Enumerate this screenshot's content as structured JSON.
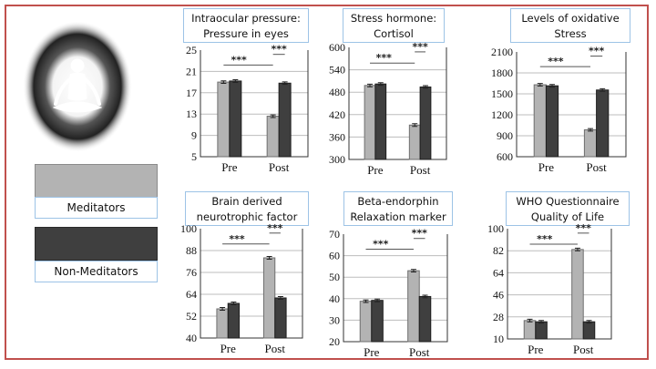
{
  "legend": {
    "meditators": {
      "label": "Meditators",
      "color": "#b3b3b3"
    },
    "non_meditators": {
      "label": "Non-Meditators",
      "color": "#3f3f3f"
    }
  },
  "chart_data": [
    {
      "type": "bar",
      "title_lines": [
        "Intraocular pressure:",
        "Pressure in eyes"
      ],
      "categories": [
        "Pre",
        "Post"
      ],
      "series": [
        {
          "name": "Meditators",
          "values": [
            19,
            12.6
          ]
        },
        {
          "name": "Non-Meditators",
          "values": [
            19.2,
            18.8
          ]
        }
      ],
      "ylim": [
        5,
        25
      ],
      "yticks": [
        "25",
        "21",
        "17",
        "13",
        "9",
        "5"
      ],
      "significance": [
        "***",
        "***"
      ]
    },
    {
      "type": "bar",
      "title_lines": [
        "Stress hormone:",
        "Cortisol"
      ],
      "categories": [
        "Pre",
        "Post"
      ],
      "series": [
        {
          "name": "Meditators",
          "values": [
            498,
            392
          ]
        },
        {
          "name": "Non-Meditators",
          "values": [
            502,
            494
          ]
        }
      ],
      "ylim": [
        300,
        600
      ],
      "yticks": [
        "600",
        "540",
        "480",
        "420",
        "360",
        "300"
      ],
      "significance": [
        "***",
        "***"
      ]
    },
    {
      "type": "bar",
      "title_lines": [
        "Levels of oxidative",
        "Stress"
      ],
      "categories": [
        "Pre",
        "Post"
      ],
      "series": [
        {
          "name": "Meditators",
          "values": [
            1630,
            985
          ]
        },
        {
          "name": "Non-Meditators",
          "values": [
            1615,
            1555
          ]
        }
      ],
      "ylim": [
        600,
        2100
      ],
      "yticks": [
        "2100",
        "1800",
        "1500",
        "1200",
        "900",
        "600"
      ],
      "significance": [
        "***",
        "***"
      ]
    },
    {
      "type": "bar",
      "title_lines": [
        "Brain derived",
        "neurotrophic factor"
      ],
      "categories": [
        "Pre",
        "Post"
      ],
      "series": [
        {
          "name": "Meditators",
          "values": [
            56,
            84
          ]
        },
        {
          "name": "Non-Meditators",
          "values": [
            59,
            62
          ]
        }
      ],
      "ylim": [
        40,
        100
      ],
      "yticks": [
        "100",
        "88",
        "76",
        "64",
        "52",
        "40"
      ],
      "significance": [
        "***",
        "***"
      ]
    },
    {
      "type": "bar",
      "title_lines": [
        "Beta-endorphin",
        "Relaxation marker"
      ],
      "categories": [
        "Pre",
        "Post"
      ],
      "series": [
        {
          "name": "Meditators",
          "values": [
            38.8,
            53
          ]
        },
        {
          "name": "Non-Meditators",
          "values": [
            39.2,
            41
          ]
        }
      ],
      "ylim": [
        20,
        70
      ],
      "yticks": [
        "70",
        "60",
        "50",
        "40",
        "30",
        "20"
      ],
      "significance": [
        "***",
        "***"
      ]
    },
    {
      "type": "bar",
      "title_lines": [
        "WHO Questionnaire",
        "Quality of Life"
      ],
      "categories": [
        "Pre",
        "Post"
      ],
      "series": [
        {
          "name": "Meditators",
          "values": [
            25,
            83
          ]
        },
        {
          "name": "Non-Meditators",
          "values": [
            24,
            24
          ]
        }
      ],
      "ylim": [
        10,
        100
      ],
      "yticks": [
        "100",
        "82",
        "64",
        "46",
        "28",
        "10"
      ],
      "significance": [
        "***",
        "***"
      ]
    }
  ]
}
